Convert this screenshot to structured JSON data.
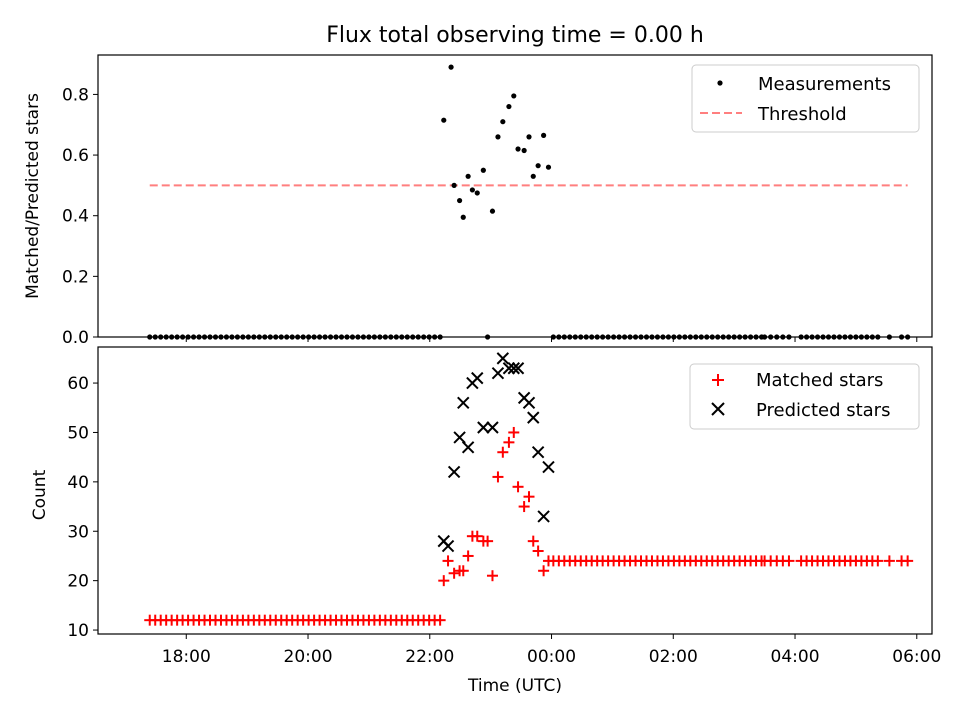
{
  "figure": {
    "title": "Flux total observing time = 0.00 h",
    "xlabel": "Time (UTC)",
    "x_ticks": [
      "18:00",
      "20:00",
      "22:00",
      "00:00",
      "02:00",
      "04:00",
      "06:00"
    ]
  },
  "chart_data": [
    {
      "type": "scatter",
      "ylabel": "Matched/Predicted stars",
      "ylim": [
        0,
        0.93
      ],
      "xlim": [
        16.55,
        30.25
      ],
      "y_ticks": [
        "0.0",
        "0.2",
        "0.4",
        "0.6",
        "0.8"
      ],
      "legend": [
        "Measurements",
        "Threshold"
      ],
      "legend_position": "top-right",
      "threshold": {
        "name": "Threshold",
        "value": 0.5,
        "x_range": [
          17.4,
          29.85
        ],
        "color": "#ff7f7f"
      },
      "series": [
        {
          "name": "Measurements",
          "color": "#000000",
          "points": [
            [
              22.23,
              0.715
            ],
            [
              22.35,
              0.89
            ],
            [
              22.4,
              0.5
            ],
            [
              22.49,
              0.45
            ],
            [
              22.55,
              0.395
            ],
            [
              22.63,
              0.53
            ],
            [
              22.7,
              0.485
            ],
            [
              22.78,
              0.475
            ],
            [
              22.88,
              0.55
            ],
            [
              22.95,
              0.0
            ],
            [
              23.03,
              0.415
            ],
            [
              23.12,
              0.66
            ],
            [
              23.2,
              0.71
            ],
            [
              23.3,
              0.76
            ],
            [
              23.38,
              0.795
            ],
            [
              23.45,
              0.62
            ],
            [
              23.55,
              0.615
            ],
            [
              23.63,
              0.66
            ],
            [
              23.7,
              0.53
            ],
            [
              23.78,
              0.565
            ],
            [
              23.87,
              0.665
            ],
            [
              23.95,
              0.56
            ]
          ],
          "zero_runs": [
            {
              "from": 17.4,
              "to": 22.2,
              "step": 0.09
            },
            {
              "from": 24.03,
              "to": 27.45,
              "step": 0.09
            },
            {
              "from": 27.5,
              "to": 27.9,
              "step": 0.1
            },
            {
              "from": 28.1,
              "to": 29.4,
              "step": 0.09
            },
            {
              "from": 29.55,
              "to": 29.55,
              "step": 0.1
            },
            {
              "from": 29.75,
              "to": 29.85,
              "step": 0.1
            }
          ]
        }
      ]
    },
    {
      "type": "scatter",
      "ylabel": "Count",
      "ylim": [
        9.2,
        67.3
      ],
      "xlim": [
        16.55,
        30.25
      ],
      "y_ticks": [
        "10",
        "20",
        "30",
        "40",
        "50",
        "60"
      ],
      "legend": [
        "Matched stars",
        "Predicted stars"
      ],
      "legend_position": "top-right",
      "series": [
        {
          "name": "Matched stars",
          "color": "#ff0000",
          "marker": "plus",
          "points": [
            [
              22.23,
              20
            ],
            [
              22.3,
              24
            ],
            [
              22.4,
              21.5
            ],
            [
              22.49,
              22
            ],
            [
              22.55,
              22
            ],
            [
              22.63,
              25
            ],
            [
              22.7,
              29
            ],
            [
              22.78,
              29
            ],
            [
              22.88,
              28
            ],
            [
              22.95,
              28
            ],
            [
              23.03,
              21
            ],
            [
              23.12,
              41
            ],
            [
              23.2,
              46
            ],
            [
              23.3,
              48
            ],
            [
              23.38,
              50
            ],
            [
              23.45,
              39
            ],
            [
              23.55,
              35
            ],
            [
              23.63,
              37
            ],
            [
              23.7,
              28
            ],
            [
              23.78,
              26
            ],
            [
              23.87,
              22
            ],
            [
              23.95,
              24
            ]
          ],
          "constant_runs": [
            {
              "from": 17.4,
              "to": 22.2,
              "step": 0.09,
              "value": 12
            },
            {
              "from": 24.03,
              "to": 27.45,
              "step": 0.09,
              "value": 24
            },
            {
              "from": 27.5,
              "to": 27.9,
              "step": 0.1,
              "value": 24
            },
            {
              "from": 28.1,
              "to": 29.4,
              "step": 0.09,
              "value": 24
            },
            {
              "from": 29.55,
              "to": 29.55,
              "step": 0.1,
              "value": 24
            },
            {
              "from": 29.75,
              "to": 29.85,
              "step": 0.1,
              "value": 24
            }
          ]
        },
        {
          "name": "Predicted stars",
          "color": "#000000",
          "marker": "x",
          "points": [
            [
              22.23,
              28
            ],
            [
              22.3,
              27
            ],
            [
              22.4,
              42
            ],
            [
              22.49,
              49
            ],
            [
              22.55,
              56
            ],
            [
              22.63,
              47
            ],
            [
              22.7,
              60
            ],
            [
              22.78,
              61
            ],
            [
              22.88,
              51
            ],
            [
              23.03,
              51
            ],
            [
              23.12,
              62
            ],
            [
              23.2,
              65
            ],
            [
              23.3,
              63
            ],
            [
              23.38,
              63
            ],
            [
              23.45,
              63
            ],
            [
              23.55,
              57
            ],
            [
              23.63,
              56
            ],
            [
              23.7,
              53
            ],
            [
              23.78,
              46
            ],
            [
              23.87,
              33
            ],
            [
              23.95,
              43
            ]
          ]
        }
      ]
    }
  ]
}
